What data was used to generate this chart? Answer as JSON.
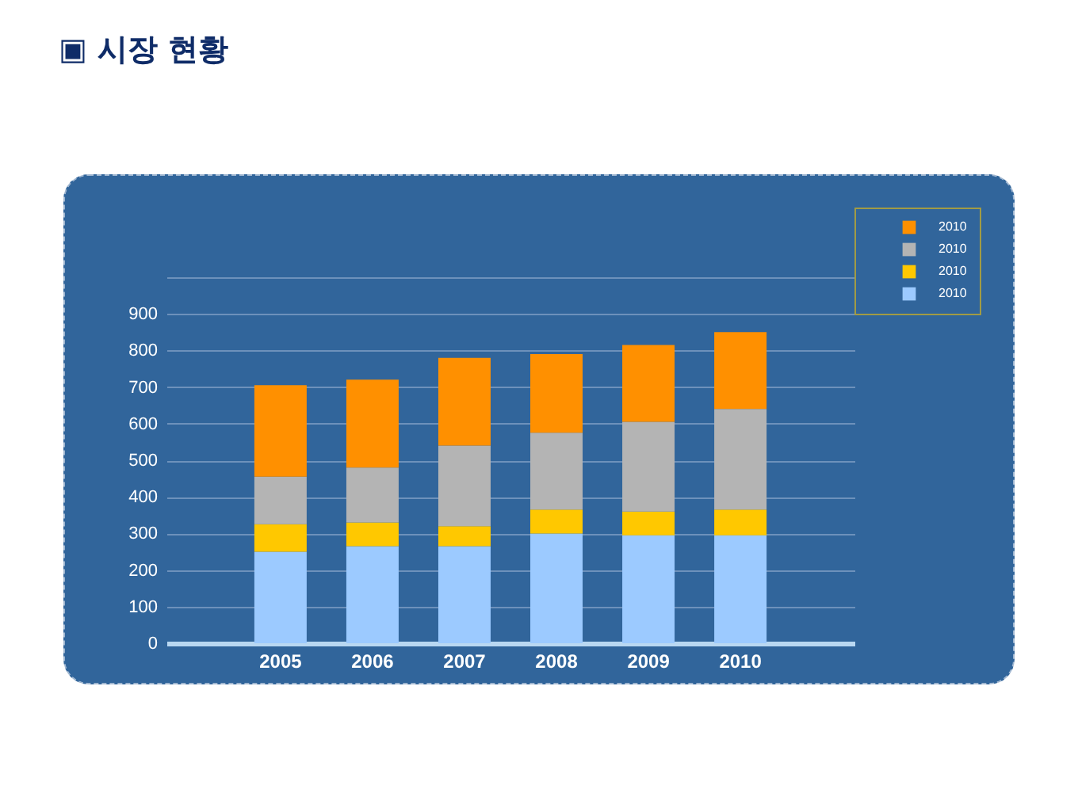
{
  "chart_data": {
    "type": "bar",
    "title": "▣ 시장 현황",
    "categories": [
      "2005",
      "2006",
      "2007",
      "2008",
      "2009",
      "2010"
    ],
    "stacked": true,
    "series": [
      {
        "name": "2010",
        "color": "#9ccaff",
        "values": [
          250,
          265,
          265,
          300,
          295,
          295
        ]
      },
      {
        "name": "2010",
        "color": "#ffc800",
        "values": [
          75,
          65,
          55,
          65,
          65,
          70
        ]
      },
      {
        "name": "2010",
        "color": "#b4b4b4",
        "values": [
          130,
          150,
          220,
          210,
          245,
          275
        ]
      },
      {
        "name": "2010",
        "color": "#ff9000",
        "values": [
          250,
          240,
          240,
          215,
          210,
          210
        ]
      }
    ],
    "ylim": [
      0,
      1000
    ],
    "yticks": [
      0,
      100,
      200,
      300,
      400,
      500,
      600,
      700,
      800,
      900,
      {
        "value": 1000,
        "label": null
      }
    ],
    "grid": "y",
    "legend": "top right"
  }
}
